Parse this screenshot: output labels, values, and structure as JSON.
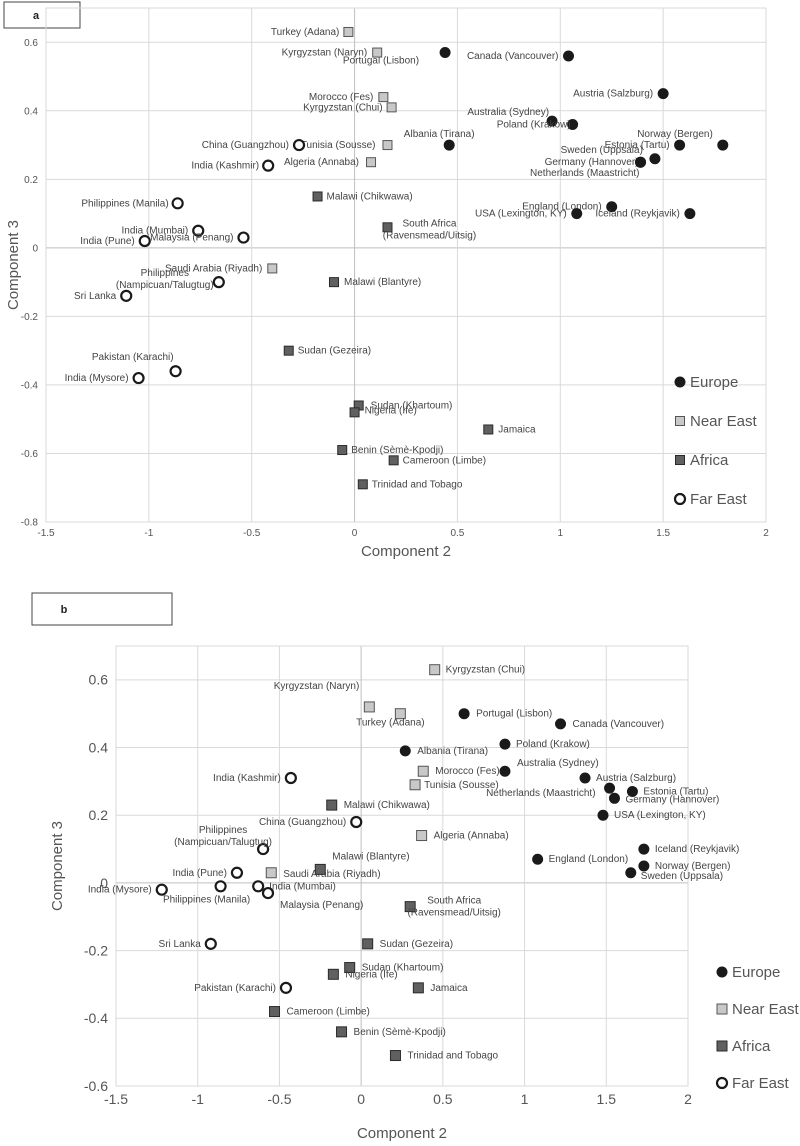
{
  "chart_data": [
    {
      "panel_label": "a",
      "type": "scatter",
      "title": "",
      "xlabel": "Component 2",
      "ylabel": "Component 3",
      "xlim": [
        -1.5,
        2
      ],
      "ylim": [
        -0.8,
        0.7
      ],
      "x_ticks": [
        -1.5,
        -1,
        -0.5,
        0,
        0.5,
        1,
        1.5,
        2
      ],
      "x_tick_labels": [
        "-1.5",
        "-1",
        "-0.5",
        "0",
        "0.5",
        "1",
        "1.5",
        "2"
      ],
      "y_ticks": [
        -0.8,
        -0.6,
        -0.4,
        -0.2,
        0,
        0.2,
        0.4,
        0.6
      ],
      "y_tick_labels": [
        "-0.8",
        "-0.6",
        "-0.4",
        "-0.2",
        "0",
        "0.2",
        "0.4",
        "0.6"
      ],
      "grid": true,
      "legend_position": "bottom-right",
      "series": [
        {
          "name": "Europe",
          "marker": "filled-circle",
          "color": "#1a1a1a",
          "points": [
            {
              "label": "Portugal (Lisbon)",
              "x": 0.44,
              "y": 0.57
            },
            {
              "label": "Canada (Vancouver)",
              "x": 1.04,
              "y": 0.56
            },
            {
              "label": "Austria (Salzburg)",
              "x": 1.5,
              "y": 0.45
            },
            {
              "label": "Australia (Sydney)",
              "x": 0.96,
              "y": 0.37
            },
            {
              "label": "Poland (Krakow)",
              "x": 1.06,
              "y": 0.36
            },
            {
              "label": "Albania (Tirana)",
              "x": 0.46,
              "y": 0.3
            },
            {
              "label": "Norway (Bergen)",
              "x": 1.79,
              "y": 0.3
            },
            {
              "label": "Estonia (Tartu)",
              "x": 1.58,
              "y": 0.3
            },
            {
              "label": "Sweden (Uppsala)",
              "x": 1.46,
              "y": 0.26
            },
            {
              "label": "Germany (Hannover)",
              "x": 1.39,
              "y": 0.25
            },
            {
              "label": "Netherlands (Maastricht)",
              "x": 1.39,
              "y": 0.25
            },
            {
              "label": "England (London)",
              "x": 1.25,
              "y": 0.12
            },
            {
              "label": "Iceland (Reykjavik)",
              "x": 1.63,
              "y": 0.1
            },
            {
              "label": "USA (Lexington, KY)",
              "x": 1.08,
              "y": 0.1
            }
          ]
        },
        {
          "name": "Near East",
          "marker": "light-square",
          "color": "#c8c8c8",
          "points": [
            {
              "label": "Turkey (Adana)",
              "x": -0.03,
              "y": 0.63
            },
            {
              "label": "Kyrgyzstan (Naryn)",
              "x": 0.11,
              "y": 0.57
            },
            {
              "label": "Morocco (Fes)",
              "x": 0.14,
              "y": 0.44
            },
            {
              "label": "Kyrgyzstan (Chui)",
              "x": 0.18,
              "y": 0.41
            },
            {
              "label": "Tunisia (Sousse)",
              "x": 0.16,
              "y": 0.3
            },
            {
              "label": "Algeria (Annaba)",
              "x": 0.08,
              "y": 0.25
            },
            {
              "label": "Saudi Arabia (Riyadh)",
              "x": -0.4,
              "y": -0.06
            }
          ]
        },
        {
          "name": "Africa",
          "marker": "dark-square",
          "color": "#606060",
          "points": [
            {
              "label": "Malawi (Chikwawa)",
              "x": -0.18,
              "y": 0.15
            },
            {
              "label": "South Africa (Ravensmead/Uitsig)",
              "x": 0.16,
              "y": 0.06
            },
            {
              "label": "Malawi (Blantyre)",
              "x": -0.1,
              "y": -0.1
            },
            {
              "label": "Sudan (Gezeira)",
              "x": -0.32,
              "y": -0.3
            },
            {
              "label": "Sudan (Khartoum)",
              "x": 0.02,
              "y": -0.46
            },
            {
              "label": "Nigeria (Ife)",
              "x": 0.0,
              "y": -0.48
            },
            {
              "label": "Jamaica",
              "x": 0.65,
              "y": -0.53
            },
            {
              "label": "Benin (Sèmè-Kpodji)",
              "x": -0.06,
              "y": -0.59
            },
            {
              "label": "Cameroon (Limbe)",
              "x": 0.19,
              "y": -0.62
            },
            {
              "label": "Trinidad and Tobago",
              "x": 0.04,
              "y": -0.69
            }
          ]
        },
        {
          "name": "Far East",
          "marker": "open-circle",
          "color": "#1a1a1a",
          "points": [
            {
              "label": "China (Guangzhou)",
              "x": -0.27,
              "y": 0.3
            },
            {
              "label": "India (Kashmir)",
              "x": -0.42,
              "y": 0.24
            },
            {
              "label": "Philippines (Manila)",
              "x": -0.86,
              "y": 0.13
            },
            {
              "label": "India (Mumbai)",
              "x": -0.76,
              "y": 0.05
            },
            {
              "label": "Malaysia (Penang)",
              "x": -0.54,
              "y": 0.03
            },
            {
              "label": "India (Pune)",
              "x": -1.02,
              "y": 0.02
            },
            {
              "label": "Philippines (Nampicuan/Talugtug)",
              "x": -0.66,
              "y": -0.1
            },
            {
              "label": "Sri Lanka",
              "x": -1.11,
              "y": -0.14
            },
            {
              "label": "Pakistan (Karachi)",
              "x": -0.87,
              "y": -0.36
            },
            {
              "label": "India (Mysore)",
              "x": -1.05,
              "y": -0.38
            }
          ]
        }
      ]
    },
    {
      "panel_label": "b",
      "type": "scatter",
      "title": "",
      "xlabel": "Component 2",
      "ylabel": "Component 3",
      "xlim": [
        -1.5,
        2
      ],
      "ylim": [
        -0.6,
        0.7
      ],
      "x_ticks": [
        -1.5,
        -1,
        -0.5,
        0,
        0.5,
        1,
        1.5,
        2
      ],
      "x_tick_labels": [
        "-1.5",
        "-1",
        "-0.5",
        "0",
        "0.5",
        "1",
        "1.5",
        "2"
      ],
      "y_ticks": [
        -0.6,
        -0.4,
        -0.2,
        0,
        0.2,
        0.4,
        0.6
      ],
      "y_tick_labels": [
        "-0.6",
        "-0.4",
        "-0.2",
        "0",
        "0.2",
        "0.4",
        "0.6"
      ],
      "grid": true,
      "legend_position": "bottom-right",
      "series": [
        {
          "name": "Europe",
          "marker": "filled-circle",
          "color": "#1a1a1a",
          "points": [
            {
              "label": "Portugal (Lisbon)",
              "x": 0.63,
              "y": 0.5
            },
            {
              "label": "Canada (Vancouver)",
              "x": 1.22,
              "y": 0.47
            },
            {
              "label": "Poland (Krakow)",
              "x": 0.88,
              "y": 0.41
            },
            {
              "label": "Albania (Tirana)",
              "x": 0.27,
              "y": 0.39
            },
            {
              "label": "Australia (Sydney)",
              "x": 0.88,
              "y": 0.33
            },
            {
              "label": "Austria (Salzburg)",
              "x": 1.37,
              "y": 0.31
            },
            {
              "label": "Netherlands (Maastricht)",
              "x": 1.52,
              "y": 0.28
            },
            {
              "label": "Estonia (Tartu)",
              "x": 1.66,
              "y": 0.27
            },
            {
              "label": "Germany (Hannover)",
              "x": 1.55,
              "y": 0.25
            },
            {
              "label": "USA (Lexington, KY)",
              "x": 1.48,
              "y": 0.2
            },
            {
              "label": "Iceland (Reykjavik)",
              "x": 1.73,
              "y": 0.1
            },
            {
              "label": "England (London)",
              "x": 1.08,
              "y": 0.07
            },
            {
              "label": "Norway (Bergen)",
              "x": 1.73,
              "y": 0.05
            },
            {
              "label": "Sweden (Uppsala)",
              "x": 1.65,
              "y": 0.03
            }
          ]
        },
        {
          "name": "Near East",
          "marker": "light-square",
          "color": "#c8c8c8",
          "points": [
            {
              "label": "Kyrgyzstan (Chui)",
              "x": 0.45,
              "y": 0.63
            },
            {
              "label": "Kyrgyzstan (Naryn)",
              "x": 0.05,
              "y": 0.52
            },
            {
              "label": "Turkey (Adana)",
              "x": 0.24,
              "y": 0.5
            },
            {
              "label": "Morocco (Fes)",
              "x": 0.38,
              "y": 0.33
            },
            {
              "label": "Tunisia (Sousse)",
              "x": 0.33,
              "y": 0.29
            },
            {
              "label": "Algeria (Annaba)",
              "x": 0.37,
              "y": 0.14
            },
            {
              "label": "Saudi Arabia (Riyadh)",
              "x": -0.55,
              "y": 0.03
            }
          ]
        },
        {
          "name": "Africa",
          "marker": "dark-square",
          "color": "#606060",
          "points": [
            {
              "label": "Malawi (Chikwawa)",
              "x": -0.18,
              "y": 0.23
            },
            {
              "label": "Malawi (Blantyre)",
              "x": -0.25,
              "y": 0.04
            },
            {
              "label": "South Africa (Ravensmead/Uitsig)",
              "x": 0.3,
              "y": -0.07
            },
            {
              "label": "Sudan (Gezeira)",
              "x": 0.04,
              "y": -0.18
            },
            {
              "label": "Sudan (Khartoum)",
              "x": -0.07,
              "y": -0.25
            },
            {
              "label": "Nigeria (Ife)",
              "x": -0.17,
              "y": -0.27
            },
            {
              "label": "Jamaica",
              "x": 0.35,
              "y": -0.31
            },
            {
              "label": "Cameroon (Limbe)",
              "x": -0.53,
              "y": -0.38
            },
            {
              "label": "Benin (Sèmè-Kpodji)",
              "x": -0.12,
              "y": -0.44
            },
            {
              "label": "Trinidad and Tobago",
              "x": 0.21,
              "y": -0.51
            }
          ]
        },
        {
          "name": "Far East",
          "marker": "open-circle",
          "color": "#1a1a1a",
          "points": [
            {
              "label": "India (Kashmir)",
              "x": -0.43,
              "y": 0.31
            },
            {
              "label": "China (Guangzhou)",
              "x": -0.03,
              "y": 0.18
            },
            {
              "label": "Philippines (Nampicuan/Talugtug)",
              "x": -0.6,
              "y": 0.1
            },
            {
              "label": "India (Pune)",
              "x": -0.76,
              "y": 0.03
            },
            {
              "label": "India (Mumbai)",
              "x": -0.63,
              "y": -0.01
            },
            {
              "label": "Malaysia (Penang)",
              "x": -0.57,
              "y": -0.03
            },
            {
              "label": "Philippines (Manila)",
              "x": -0.86,
              "y": -0.01
            },
            {
              "label": "India (Mysore)",
              "x": -1.22,
              "y": -0.02
            },
            {
              "label": "Sri Lanka",
              "x": -0.92,
              "y": -0.18
            },
            {
              "label": "Pakistan (Karachi)",
              "x": -0.46,
              "y": -0.31
            }
          ]
        }
      ]
    }
  ]
}
